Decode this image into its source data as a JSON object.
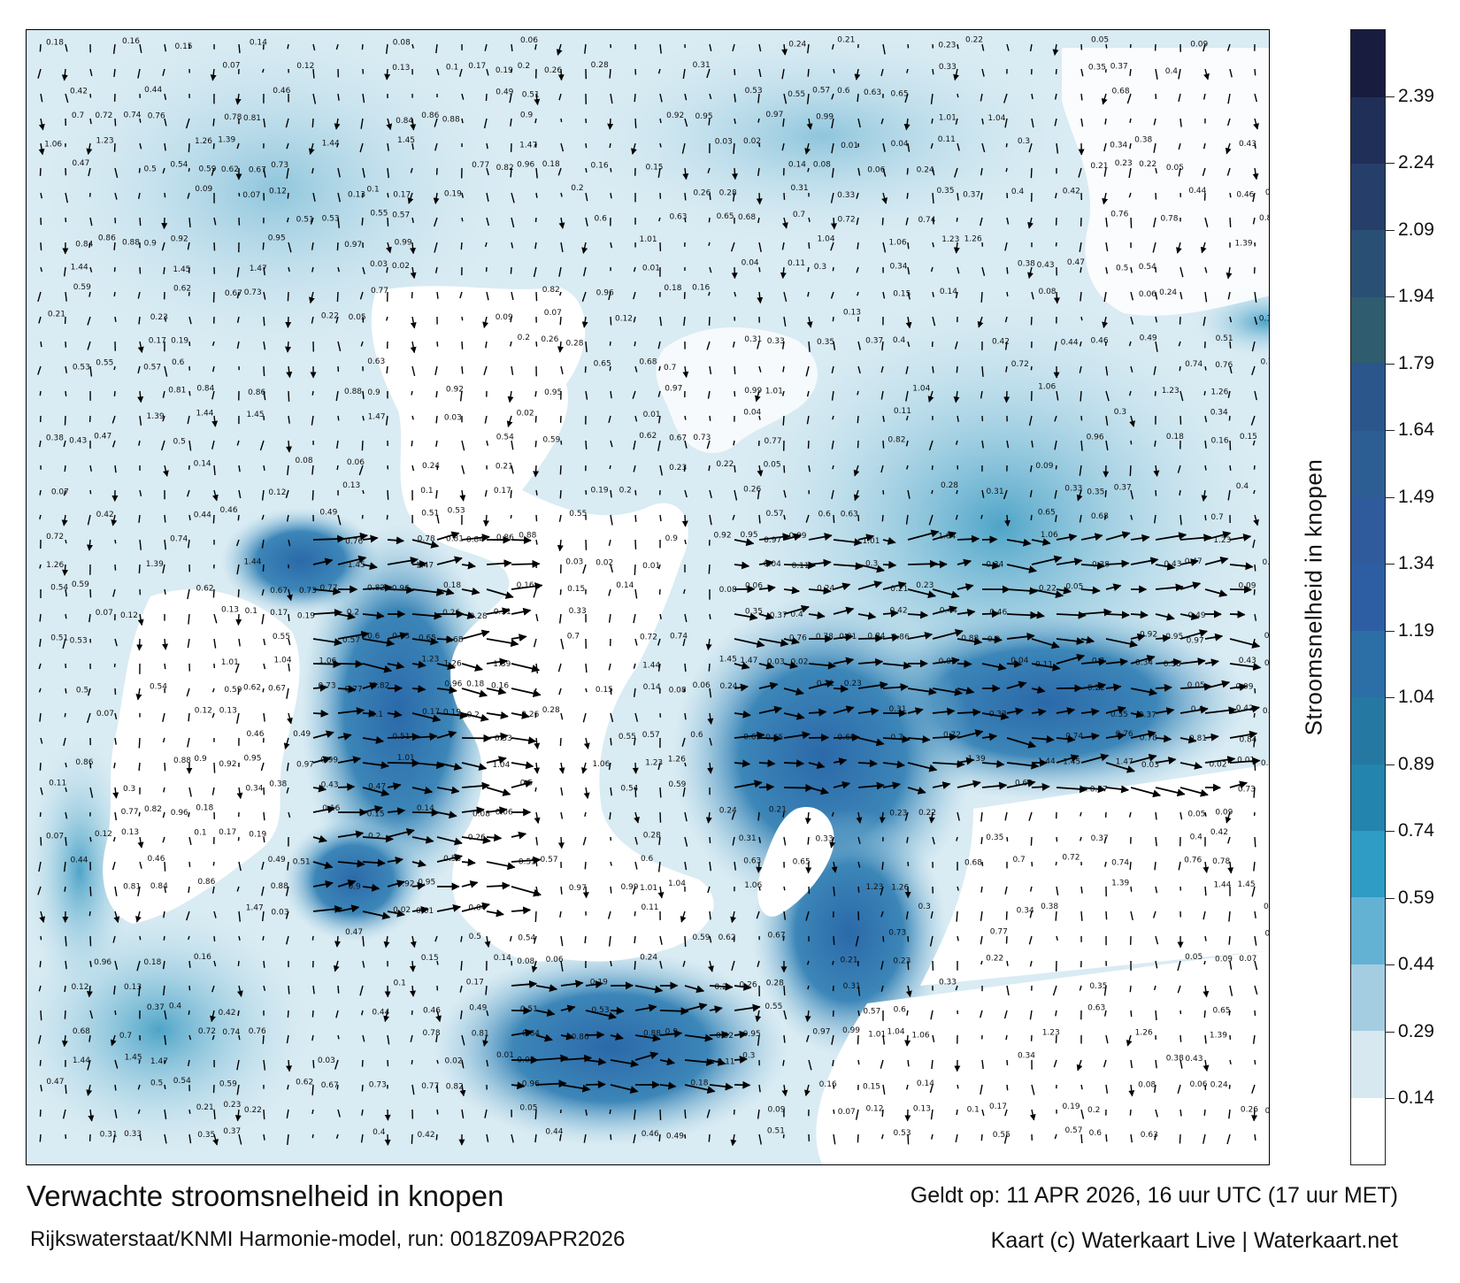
{
  "title": "Verwachte stroomsnelheid in knopen",
  "source": "Rijkswaterstaat/KNMI Harmonie-model, run: 0018Z09APR2026",
  "valid_time": "Geldt op: 11 APR 2026, 16 uur UTC (17 uur MET)",
  "copyright": "Kaart (c) Waterkaart Live | Waterkaart.net",
  "legend": {
    "title": "Stroomsnelheid in knopen",
    "ticks": [
      "0.14",
      "0.29",
      "0.44",
      "0.59",
      "0.74",
      "0.89",
      "1.04",
      "1.19",
      "1.34",
      "1.49",
      "1.64",
      "1.79",
      "1.94",
      "2.09",
      "2.24",
      "2.39"
    ],
    "colors": [
      "#ffffff",
      "#d7e8f1",
      "#a4cde2",
      "#63b2d4",
      "#2e9cc4",
      "#2384ad",
      "#2578a2",
      "#2b6fa6",
      "#2d5ea3",
      "#2f5a9c",
      "#2c5e93",
      "#2a568c",
      "#2f5c6e",
      "#2a4f75",
      "#253f6a",
      "#1f2f58",
      "#181c3e"
    ]
  },
  "map": {
    "sample_values": [
      "0.18",
      "0.16",
      "0.15",
      "0.14",
      "0.08",
      "0.06",
      "0.24",
      "0.21",
      "0.23",
      "0.22",
      "0.05",
      "0.09",
      "0.07",
      "0.12",
      "0.13",
      "0.1",
      "0.17",
      "0.19",
      "0.2",
      "0.26",
      "0.28",
      "0.31",
      "0.33",
      "0.35",
      "0.37",
      "0.4",
      "0.42",
      "0.44",
      "0.46",
      "0.49",
      "0.51",
      "0.53",
      "0.55",
      "0.57",
      "0.6",
      "0.63",
      "0.65",
      "0.68",
      "0.7",
      "0.72",
      "0.74",
      "0.76",
      "0.78",
      "0.81",
      "0.84",
      "0.86",
      "0.88",
      "0.9",
      "0.92",
      "0.95",
      "0.97",
      "0.99",
      "1.01",
      "1.04",
      "1.06",
      "1.23",
      "1.26",
      "1.39",
      "1.44",
      "1.45",
      "1.47",
      "0.03",
      "0.02",
      "0.01",
      "0.04",
      "0.11",
      "0.3",
      "0.34",
      "0.38",
      "0.43",
      "0.47",
      "0.5",
      "0.54",
      "0.59",
      "0.62",
      "0.67",
      "0.73",
      "0.77",
      "0.82",
      "0.96"
    ]
  }
}
